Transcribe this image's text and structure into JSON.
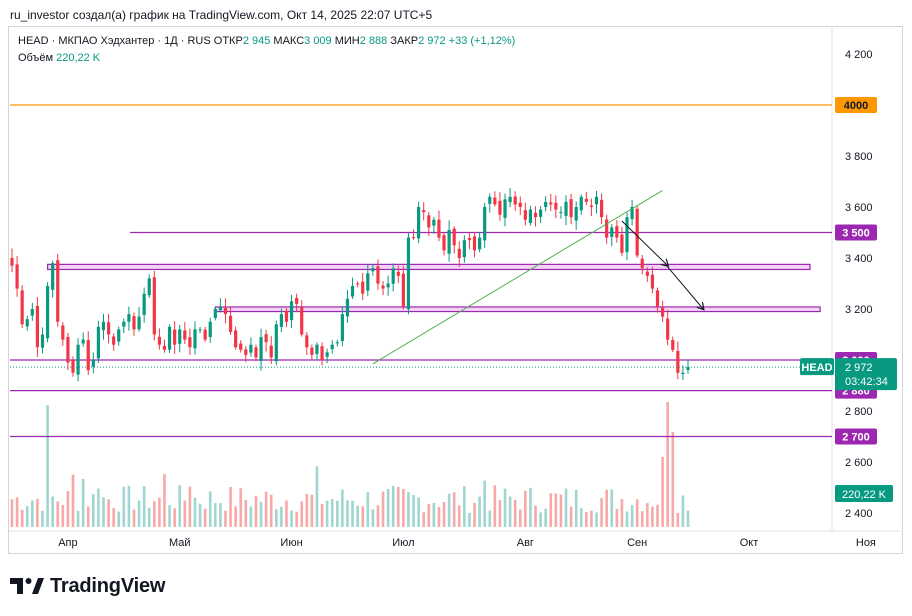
{
  "header": {
    "credit": "ru_investor создал(а) график на TradingView.com, Окт 14, 2025 22:07 UTC+5"
  },
  "legend": {
    "symbol": "HEAD · МКПАО Хэдхантер · 1Д · RUS",
    "open_label": "ОТКР",
    "open": "2 945",
    "high_label": "МАКС",
    "high": "3 009",
    "low_label": "МИН",
    "low": "2 888",
    "close_label": "ЗАКР",
    "close": "2 972",
    "change": "+33 (+1,12%)",
    "volume_label": "Объём",
    "volume": "220,22 K"
  },
  "price_label": {
    "ticker": "HEAD",
    "price": "2 972",
    "countdown": "03:42:34"
  },
  "volume_badge": "220,22 K",
  "brand": {
    "name": "TradingView"
  },
  "colors": {
    "up": "#089981",
    "down": "#f23645",
    "vol_up": "#9fd6cf",
    "vol_down": "#f7a9a7",
    "level": "#9c27b0",
    "level_orange": "#ff9800",
    "trend": "#4caf50",
    "zone_fill": "#f3d4f7"
  },
  "chart_data": {
    "type": "candlestick",
    "ylim": [
      2360,
      4280
    ],
    "yticks": [
      "2 400",
      "2 600",
      "2 800",
      "3 200",
      "3 400",
      "3 600",
      "3 800",
      "4 200"
    ],
    "yticks_values": [
      2400,
      2600,
      2800,
      3200,
      3400,
      3600,
      3800,
      4200
    ],
    "xticks": [
      "Апр",
      "Май",
      "Июн",
      "Июл",
      "Авг",
      "Сен",
      "Окт",
      "Ноя"
    ],
    "xtick_index": [
      11,
      33,
      55,
      77,
      101,
      123,
      145,
      168
    ],
    "levels": [
      {
        "value": 4000,
        "label": "4000",
        "color": "orange"
      },
      {
        "value": 3500,
        "label": "3 500",
        "color": "purple"
      },
      {
        "value": 3000,
        "label": "3 000",
        "color": "purple"
      },
      {
        "value": 2880,
        "label": "2 880",
        "color": "purple"
      },
      {
        "value": 2700,
        "label": "2 700",
        "color": "purple"
      }
    ],
    "zones": [
      {
        "from_index": 7,
        "to_index": 157,
        "low": 3355,
        "high": 3375
      },
      {
        "from_index": 40,
        "to_index": 159,
        "low": 3190,
        "high": 3208
      }
    ],
    "trendline": {
      "from": [
        71,
        2985
      ],
      "to": [
        128,
        3665
      ]
    },
    "arrows": [
      {
        "from": [
          120,
          3545
        ],
        "to": [
          129,
          3370
        ]
      },
      {
        "from": [
          129,
          3365
        ],
        "to": [
          136,
          3200
        ]
      }
    ],
    "ohlc_close": [
      3370,
      3280,
      3140,
      3160,
      3200,
      3050,
      3100,
      3290,
      3380,
      3150,
      3080,
      2990,
      2950,
      3060,
      3080,
      2960,
      3000,
      3130,
      3150,
      3100,
      3060,
      3120,
      3150,
      3180,
      3120,
      3170,
      3260,
      3320,
      3100,
      3060,
      3040,
      3130,
      3060,
      3120,
      3080,
      3050,
      3120,
      3120,
      3080,
      3150,
      3200,
      3210,
      3180,
      3110,
      3050,
      3040,
      3020,
      3060,
      3010,
      3090,
      3070,
      3010,
      3140,
      3180,
      3150,
      3230,
      3220,
      3100,
      3050,
      3020,
      3060,
      3000,
      3030,
      3060,
      3070,
      3180,
      3240,
      3290,
      3300,
      3260,
      3340,
      3360,
      3300,
      3280,
      3300,
      3360,
      3330,
      3210,
      3480,
      3480,
      3600,
      3580,
      3520,
      3550,
      3480,
      3430,
      3510,
      3450,
      3400,
      3470,
      3470,
      3430,
      3480,
      3600,
      3640,
      3610,
      3570,
      3630,
      3640,
      3610,
      3600,
      3550,
      3590,
      3560,
      3590,
      3620,
      3610,
      3590,
      3580,
      3620,
      3560,
      3600,
      3640,
      3620,
      3600,
      3640,
      3560,
      3480,
      3520,
      3480,
      3420,
      3560,
      3600,
      3410,
      3360,
      3330,
      3280,
      3210,
      3170,
      3080,
      3040,
      2950,
      2950,
      2972
    ],
    "volume_scale_note": "relative"
  }
}
